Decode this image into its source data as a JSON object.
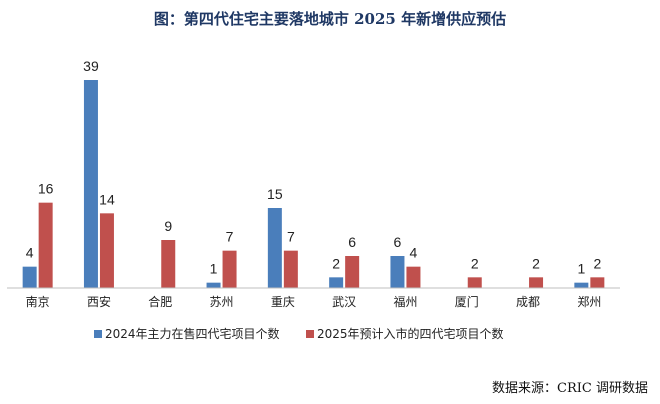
{
  "title": "图：第四代住宅主要落地城市 2025 年新增供应预估",
  "source": "数据来源：CRIC 调研数据",
  "chart_data": {
    "type": "bar",
    "title": "图：第四代住宅主要落地城市 2025 年新增供应预估",
    "categories": [
      "南京",
      "西安",
      "合肥",
      "苏州",
      "重庆",
      "武汉",
      "福州",
      "厦门",
      "成都",
      "郑州"
    ],
    "series": [
      {
        "name": "2024年主力在售四代宅项目个数",
        "color": "#4a7ebb",
        "values": [
          4,
          39,
          null,
          1,
          15,
          2,
          6,
          null,
          null,
          1
        ]
      },
      {
        "name": "2025年预计入市的四代宅项目个数",
        "color": "#c0504d",
        "values": [
          16,
          14,
          9,
          7,
          7,
          6,
          4,
          2,
          2,
          2
        ]
      }
    ],
    "ylim": [
      0,
      40
    ],
    "grid": false,
    "legend_position": "bottom",
    "data_labels": true
  }
}
